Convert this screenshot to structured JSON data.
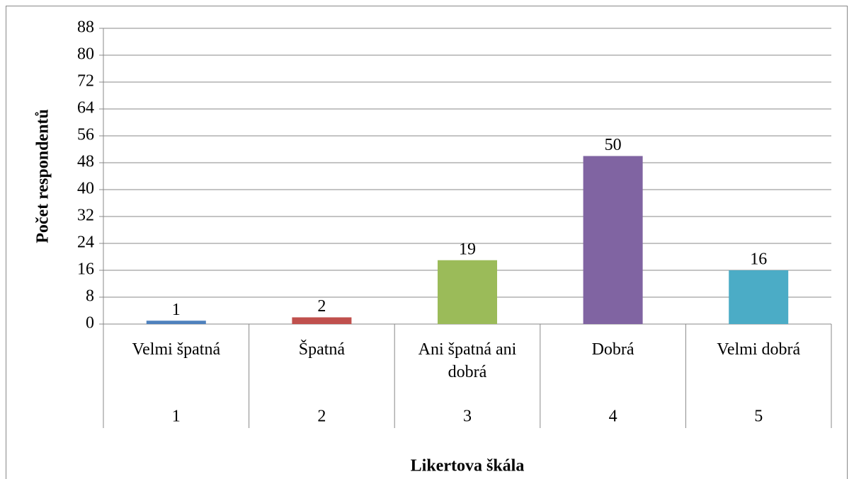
{
  "chart_data": {
    "type": "bar",
    "categories": [
      "Velmi špatná",
      "Špatná",
      "Ani špatná ani dobrá",
      "Dobrá",
      "Velmi dobrá"
    ],
    "category_numbers": [
      "1",
      "2",
      "3",
      "4",
      "5"
    ],
    "values": [
      1,
      2,
      19,
      50,
      16
    ],
    "colors": [
      "#4f81bd",
      "#c0504d",
      "#9bbb59",
      "#8064a2",
      "#4bacc6"
    ],
    "y_label": "Počet respondentů",
    "x_label": "Likertova škála",
    "ylim": [
      0,
      88
    ],
    "yticks": [
      0,
      8,
      16,
      24,
      32,
      40,
      48,
      56,
      64,
      72,
      80,
      88
    ],
    "grid": true
  }
}
